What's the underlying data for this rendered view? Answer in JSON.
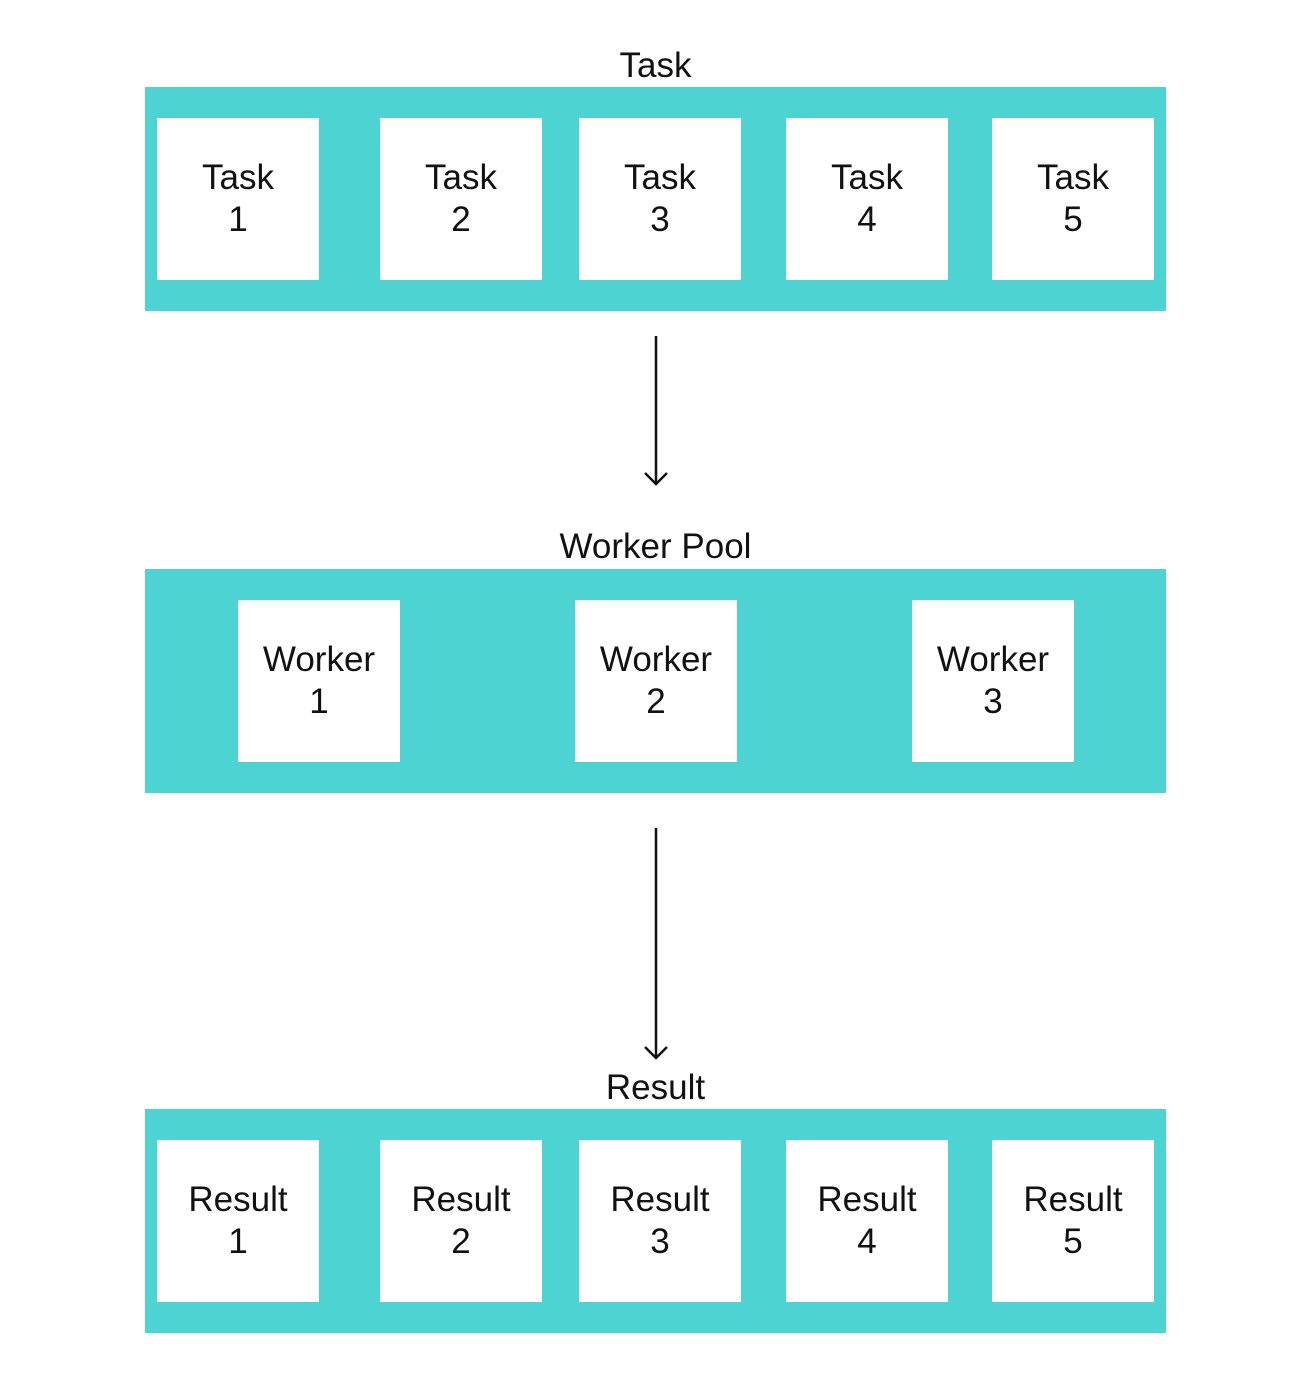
{
  "colors": {
    "band": "#4dd3d2",
    "card": "#ffffff",
    "text": "#111111",
    "arrow": "#111111"
  },
  "task_section": {
    "title": "Task",
    "items": [
      {
        "word": "Task",
        "number": "1"
      },
      {
        "word": "Task",
        "number": "2"
      },
      {
        "word": "Task",
        "number": "3"
      },
      {
        "word": "Task",
        "number": "4"
      },
      {
        "word": "Task",
        "number": "5"
      }
    ]
  },
  "worker_section": {
    "title": "Worker Pool",
    "items": [
      {
        "word": "Worker",
        "number": "1"
      },
      {
        "word": "Worker",
        "number": "2"
      },
      {
        "word": "Worker",
        "number": "3"
      }
    ]
  },
  "result_section": {
    "title": "Result",
    "items": [
      {
        "word": "Result",
        "number": "1"
      },
      {
        "word": "Result",
        "number": "2"
      },
      {
        "word": "Result",
        "number": "3"
      },
      {
        "word": "Result",
        "number": "4"
      },
      {
        "word": "Result",
        "number": "5"
      }
    ]
  }
}
